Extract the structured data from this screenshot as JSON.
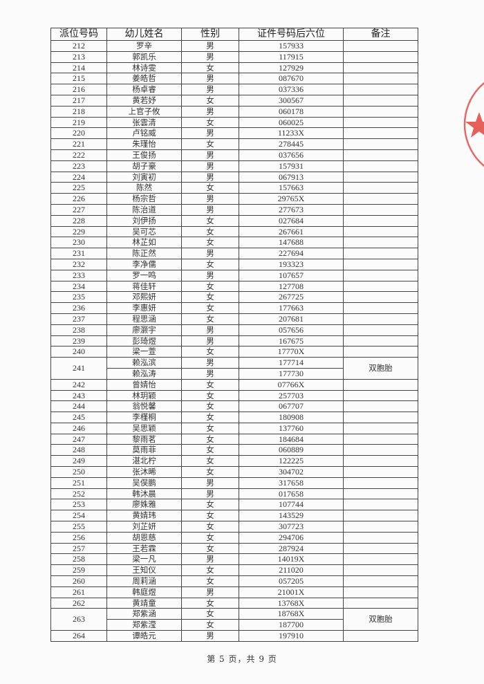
{
  "header": {
    "col_no": "派位号码",
    "col_name": "幼儿姓名",
    "col_gender": "性别",
    "col_id": "证件号码后六位",
    "col_note": "备注"
  },
  "rows": [
    {
      "no": "212",
      "children": [
        {
          "name": "罗辛",
          "gender": "男",
          "id": "157933"
        }
      ],
      "note": ""
    },
    {
      "no": "213",
      "children": [
        {
          "name": "郭凯乐",
          "gender": "男",
          "id": "117915"
        }
      ],
      "note": ""
    },
    {
      "no": "214",
      "children": [
        {
          "name": "林诗雯",
          "gender": "女",
          "id": "127929"
        }
      ],
      "note": ""
    },
    {
      "no": "215",
      "children": [
        {
          "name": "姜皓哲",
          "gender": "男",
          "id": "087670"
        }
      ],
      "note": ""
    },
    {
      "no": "216",
      "children": [
        {
          "name": "杨卓睿",
          "gender": "男",
          "id": "037336"
        }
      ],
      "note": ""
    },
    {
      "no": "217",
      "children": [
        {
          "name": "黄若妤",
          "gender": "女",
          "id": "300567"
        }
      ],
      "note": ""
    },
    {
      "no": "218",
      "children": [
        {
          "name": "上官子攸",
          "gender": "男",
          "id": "060178"
        }
      ],
      "note": ""
    },
    {
      "no": "219",
      "children": [
        {
          "name": "张雲清",
          "gender": "女",
          "id": "060025"
        }
      ],
      "note": ""
    },
    {
      "no": "220",
      "children": [
        {
          "name": "卢铭威",
          "gender": "男",
          "id": "11233X"
        }
      ],
      "note": ""
    },
    {
      "no": "221",
      "children": [
        {
          "name": "朱瑾怡",
          "gender": "女",
          "id": "278445"
        }
      ],
      "note": ""
    },
    {
      "no": "222",
      "children": [
        {
          "name": "王俊扬",
          "gender": "男",
          "id": "037656"
        }
      ],
      "note": ""
    },
    {
      "no": "223",
      "children": [
        {
          "name": "胡子豪",
          "gender": "男",
          "id": "157931"
        }
      ],
      "note": ""
    },
    {
      "no": "224",
      "children": [
        {
          "name": "刘寅初",
          "gender": "男",
          "id": "067913"
        }
      ],
      "note": ""
    },
    {
      "no": "225",
      "children": [
        {
          "name": "陈然",
          "gender": "女",
          "id": "157663"
        }
      ],
      "note": ""
    },
    {
      "no": "226",
      "children": [
        {
          "name": "杨宗哲",
          "gender": "男",
          "id": "29765X"
        }
      ],
      "note": ""
    },
    {
      "no": "227",
      "children": [
        {
          "name": "陈治道",
          "gender": "男",
          "id": "277673"
        }
      ],
      "note": ""
    },
    {
      "no": "228",
      "children": [
        {
          "name": "刘伊扬",
          "gender": "女",
          "id": "027684"
        }
      ],
      "note": ""
    },
    {
      "no": "229",
      "children": [
        {
          "name": "吴可芯",
          "gender": "女",
          "id": "267661"
        }
      ],
      "note": ""
    },
    {
      "no": "230",
      "children": [
        {
          "name": "林芷如",
          "gender": "女",
          "id": "147688"
        }
      ],
      "note": ""
    },
    {
      "no": "231",
      "children": [
        {
          "name": "陈正然",
          "gender": "男",
          "id": "227694"
        }
      ],
      "note": ""
    },
    {
      "no": "232",
      "children": [
        {
          "name": "李净儒",
          "gender": "女",
          "id": "193323"
        }
      ],
      "note": ""
    },
    {
      "no": "233",
      "children": [
        {
          "name": "罗一鸣",
          "gender": "男",
          "id": "107657"
        }
      ],
      "note": ""
    },
    {
      "no": "234",
      "children": [
        {
          "name": "蒋佳轩",
          "gender": "女",
          "id": "127708"
        }
      ],
      "note": ""
    },
    {
      "no": "235",
      "children": [
        {
          "name": "邓熙妍",
          "gender": "女",
          "id": "267725"
        }
      ],
      "note": ""
    },
    {
      "no": "236",
      "children": [
        {
          "name": "李惠妍",
          "gender": "女",
          "id": "177663"
        }
      ],
      "note": ""
    },
    {
      "no": "237",
      "children": [
        {
          "name": "程思涵",
          "gender": "女",
          "id": "207681"
        }
      ],
      "note": ""
    },
    {
      "no": "238",
      "children": [
        {
          "name": "廖灏宇",
          "gender": "男",
          "id": "057656"
        }
      ],
      "note": ""
    },
    {
      "no": "239",
      "children": [
        {
          "name": "彭琦煜",
          "gender": "男",
          "id": "167675"
        }
      ],
      "note": ""
    },
    {
      "no": "240",
      "children": [
        {
          "name": "梁一萱",
          "gender": "女",
          "id": "17770X"
        }
      ],
      "note": ""
    },
    {
      "no": "241",
      "children": [
        {
          "name": "赖泓滨",
          "gender": "男",
          "id": "177714"
        },
        {
          "name": "赖泓涛",
          "gender": "男",
          "id": "177730"
        }
      ],
      "note": "双胞胎"
    },
    {
      "no": "242",
      "children": [
        {
          "name": "曾婧怡",
          "gender": "女",
          "id": "07766X"
        }
      ],
      "note": ""
    },
    {
      "no": "243",
      "children": [
        {
          "name": "林玥颖",
          "gender": "女",
          "id": "257703"
        }
      ],
      "note": ""
    },
    {
      "no": "244",
      "children": [
        {
          "name": "翁悦馨",
          "gender": "女",
          "id": "067707"
        }
      ],
      "note": ""
    },
    {
      "no": "245",
      "children": [
        {
          "name": "李槿桐",
          "gender": "女",
          "id": "180908"
        }
      ],
      "note": ""
    },
    {
      "no": "246",
      "children": [
        {
          "name": "吴思颖",
          "gender": "女",
          "id": "137760"
        }
      ],
      "note": ""
    },
    {
      "no": "247",
      "children": [
        {
          "name": "黎雨茗",
          "gender": "女",
          "id": "184684"
        }
      ],
      "note": ""
    },
    {
      "no": "248",
      "children": [
        {
          "name": "莫雨菲",
          "gender": "女",
          "id": "060889"
        }
      ],
      "note": ""
    },
    {
      "no": "249",
      "children": [
        {
          "name": "湛北柠",
          "gender": "女",
          "id": "122225"
        }
      ],
      "note": ""
    },
    {
      "no": "250",
      "children": [
        {
          "name": "张沐晞",
          "gender": "女",
          "id": "304702"
        }
      ],
      "note": ""
    },
    {
      "no": "251",
      "children": [
        {
          "name": "吴俣鹏",
          "gender": "男",
          "id": "317658"
        }
      ],
      "note": ""
    },
    {
      "no": "252",
      "children": [
        {
          "name": "韩沐晨",
          "gender": "男",
          "id": "017658"
        }
      ],
      "note": ""
    },
    {
      "no": "253",
      "children": [
        {
          "name": "廖姝雅",
          "gender": "女",
          "id": "107744"
        }
      ],
      "note": ""
    },
    {
      "no": "254",
      "children": [
        {
          "name": "黄婧玮",
          "gender": "女",
          "id": "143529"
        }
      ],
      "note": ""
    },
    {
      "no": "255",
      "children": [
        {
          "name": "刘芷妍",
          "gender": "女",
          "id": "307723"
        }
      ],
      "note": ""
    },
    {
      "no": "256",
      "children": [
        {
          "name": "胡恩慈",
          "gender": "女",
          "id": "294706"
        }
      ],
      "note": ""
    },
    {
      "no": "257",
      "children": [
        {
          "name": "王若霖",
          "gender": "女",
          "id": "287924"
        }
      ],
      "note": ""
    },
    {
      "no": "258",
      "children": [
        {
          "name": "梁一凡",
          "gender": "男",
          "id": "14019X"
        }
      ],
      "note": ""
    },
    {
      "no": "259",
      "children": [
        {
          "name": "王知仪",
          "gender": "女",
          "id": "211020"
        }
      ],
      "note": ""
    },
    {
      "no": "260",
      "children": [
        {
          "name": "周莉涵",
          "gender": "女",
          "id": "057205"
        }
      ],
      "note": ""
    },
    {
      "no": "261",
      "children": [
        {
          "name": "韩庭煜",
          "gender": "男",
          "id": "21001X"
        }
      ],
      "note": ""
    },
    {
      "no": "262",
      "children": [
        {
          "name": "黄靖童",
          "gender": "女",
          "id": "13768X"
        }
      ],
      "note": ""
    },
    {
      "no": "263",
      "children": [
        {
          "name": "郑紫涵",
          "gender": "女",
          "id": "18768X"
        },
        {
          "name": "郑紫滢",
          "gender": "女",
          "id": "187700"
        }
      ],
      "note": "双胞胎"
    },
    {
      "no": "264",
      "children": [
        {
          "name": "谭皓元",
          "gender": "男",
          "id": "197910"
        }
      ],
      "note": ""
    }
  ],
  "footer": {
    "page_label": "第 5 页，共 9 页"
  },
  "colors": {
    "stamp": "#e0443c",
    "ink": "#333333"
  }
}
